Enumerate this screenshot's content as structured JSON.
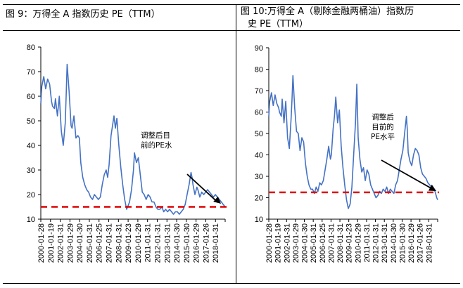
{
  "charts": [
    {
      "title": "图 9：万得全 A 指数历史 PE（TTM）",
      "annotation": [
        "调整后目",
        "前的PE水"
      ]
    },
    {
      "title_lines": [
        "图 10:万得全 A（剔除金融两桶油）指数历",
        "史 PE（TTM）"
      ],
      "annotation": [
        "调整后",
        "目前的",
        "PE水平"
      ]
    }
  ],
  "colors": {
    "line": "#4472C4",
    "reference": "#E00000",
    "arrow": "#000000"
  },
  "chart_data": [
    {
      "type": "line",
      "title": "图 9：万得全 A 指数历史 PE（TTM）",
      "xlabel": "",
      "ylabel": "",
      "ylim": [
        10,
        80
      ],
      "yticks": [
        10,
        20,
        30,
        40,
        50,
        60,
        70,
        80
      ],
      "x_tick_labels": [
        "2000-01-28",
        "2001-01-19",
        "2002-01-31",
        "2003-01-29",
        "2004-01-30",
        "2005-01-31",
        "2006-01-25",
        "2007-01-31",
        "2008-01-31",
        "2009-01-23",
        "2010-01-29",
        "2011-01-31",
        "2012-01-31",
        "2013-01-31",
        "2014-01-30",
        "2015-01-30",
        "2016-01-29",
        "2017-01-26",
        "2018-01-31"
      ],
      "x_range": [
        2000.0,
        2018.9
      ],
      "reference_line": 15,
      "grid": false,
      "legend": "none",
      "series": [
        {
          "x": [
            2000.0,
            2000.1,
            2000.3,
            2000.5,
            2000.7,
            2000.9,
            2001.1,
            2001.2,
            2001.4,
            2001.5,
            2001.7,
            2001.9,
            2002.1,
            2002.3,
            2002.5,
            2002.6,
            2002.7,
            2002.9,
            2003.1,
            2003.2,
            2003.4,
            2003.6,
            2003.8,
            2003.95,
            2004.1,
            2004.3,
            2004.5,
            2004.7,
            2004.9,
            2005.1,
            2005.3,
            2005.5,
            2005.7,
            2005.9,
            2006.1,
            2006.3,
            2006.5,
            2006.7,
            2006.85,
            2007.0,
            2007.2,
            2007.35,
            2007.5,
            2007.65,
            2007.8,
            2008.0,
            2008.2,
            2008.4,
            2008.6,
            2008.8,
            2008.9,
            2009.1,
            2009.3,
            2009.5,
            2009.6,
            2009.8,
            2010.0,
            2010.2,
            2010.4,
            2010.6,
            2010.8,
            2011.0,
            2011.2,
            2011.4,
            2011.6,
            2011.8,
            2012.0,
            2012.2,
            2012.4,
            2012.6,
            2012.8,
            2013.0,
            2013.2,
            2013.4,
            2013.6,
            2013.8,
            2014.0,
            2014.2,
            2014.4,
            2014.6,
            2014.8,
            2015.0,
            2015.2,
            2015.4,
            2015.5,
            2015.6,
            2015.8,
            2016.0,
            2016.1,
            2016.3,
            2016.5,
            2016.7,
            2016.9,
            2017.1,
            2017.3,
            2017.5,
            2017.7,
            2017.9,
            2018.1,
            2018.3,
            2018.5,
            2018.7,
            2018.9
          ],
          "y": [
            57,
            64,
            68,
            63,
            67,
            65,
            58,
            56,
            55,
            59,
            52,
            60,
            46,
            40,
            49,
            60,
            73,
            62,
            48,
            47,
            52,
            43,
            44,
            43,
            33,
            27,
            24,
            22,
            21,
            19,
            18,
            20,
            19,
            18,
            19,
            24,
            28,
            30,
            27,
            32,
            44,
            48,
            52,
            47,
            51,
            40,
            31,
            24,
            18,
            14,
            15,
            17,
            22,
            30,
            37,
            33,
            35,
            28,
            21,
            20,
            18,
            20,
            19,
            17,
            17,
            15,
            14,
            14,
            15,
            13,
            14,
            13,
            14,
            13,
            12,
            13,
            13,
            12,
            13,
            14,
            16,
            20,
            24,
            29,
            27,
            24,
            20,
            23,
            22,
            19,
            21,
            20,
            21,
            22,
            21,
            20,
            19,
            20,
            19,
            18,
            17,
            16,
            15
          ]
        }
      ]
    },
    {
      "type": "line",
      "title": "图 10:万得全 A（剔除金融两桶油）指数历史 PE（TTM）",
      "xlabel": "",
      "ylabel": "",
      "ylim": [
        10,
        90
      ],
      "yticks": [
        10,
        20,
        30,
        40,
        50,
        60,
        70,
        80,
        90
      ],
      "x_tick_labels": [
        "2000-01-28",
        "2001-01-19",
        "2002-01-31",
        "2003-01-29",
        "2004-01-30",
        "2005-01-31",
        "2006-01-25",
        "2007-01-31",
        "2008-01-31",
        "2009-01-23",
        "2010-01-29",
        "2011-01-31",
        "2012-01-31",
        "2013-01-31",
        "2014-01-30",
        "2015-01-30",
        "2016-01-29",
        "2017-01-26",
        "2018-01-31"
      ],
      "x_range": [
        2000.0,
        2018.9
      ],
      "reference_line": 22.5,
      "grid": false,
      "legend": "none",
      "series": [
        {
          "x": [
            2000.0,
            2000.1,
            2000.3,
            2000.5,
            2000.7,
            2000.9,
            2001.1,
            2001.2,
            2001.4,
            2001.5,
            2001.7,
            2001.9,
            2002.1,
            2002.3,
            2002.5,
            2002.6,
            2002.7,
            2002.9,
            2003.1,
            2003.3,
            2003.5,
            2003.7,
            2003.9,
            2004.1,
            2004.3,
            2004.5,
            2004.7,
            2004.9,
            2005.1,
            2005.3,
            2005.5,
            2005.7,
            2005.9,
            2006.1,
            2006.3,
            2006.5,
            2006.7,
            2006.9,
            2007.0,
            2007.2,
            2007.35,
            2007.5,
            2007.7,
            2007.9,
            2008.1,
            2008.3,
            2008.5,
            2008.7,
            2008.9,
            2009.1,
            2009.3,
            2009.5,
            2009.7,
            2009.85,
            2010.0,
            2010.2,
            2010.4,
            2010.6,
            2010.8,
            2011.0,
            2011.2,
            2011.4,
            2011.6,
            2011.8,
            2012.0,
            2012.2,
            2012.4,
            2012.6,
            2012.8,
            2013.0,
            2013.2,
            2013.4,
            2013.6,
            2013.8,
            2014.0,
            2014.2,
            2014.4,
            2014.6,
            2014.8,
            2015.0,
            2015.2,
            2015.4,
            2015.5,
            2015.6,
            2015.8,
            2016.0,
            2016.2,
            2016.4,
            2016.6,
            2016.8,
            2017.0,
            2017.2,
            2017.4,
            2017.6,
            2017.8,
            2018.0,
            2018.2,
            2018.4,
            2018.6,
            2018.8,
            2018.9
          ],
          "y": [
            58,
            65,
            69,
            63,
            68,
            64,
            62,
            60,
            58,
            66,
            55,
            65,
            48,
            43,
            57,
            66,
            77,
            62,
            51,
            50,
            42,
            48,
            46,
            36,
            30,
            26,
            24,
            24,
            22,
            25,
            23,
            27,
            26,
            28,
            33,
            38,
            44,
            38,
            40,
            52,
            58,
            67,
            55,
            61,
            44,
            34,
            26,
            19,
            15,
            17,
            25,
            40,
            55,
            73,
            48,
            38,
            32,
            34,
            28,
            33,
            31,
            26,
            24,
            22,
            20,
            21,
            23,
            22,
            24,
            23,
            25,
            22,
            24,
            23,
            22,
            26,
            28,
            33,
            38,
            42,
            50,
            58,
            52,
            41,
            37,
            35,
            40,
            43,
            42,
            40,
            34,
            31,
            30,
            29,
            27,
            26,
            25,
            24,
            23,
            20,
            19
          ]
        }
      ]
    }
  ]
}
